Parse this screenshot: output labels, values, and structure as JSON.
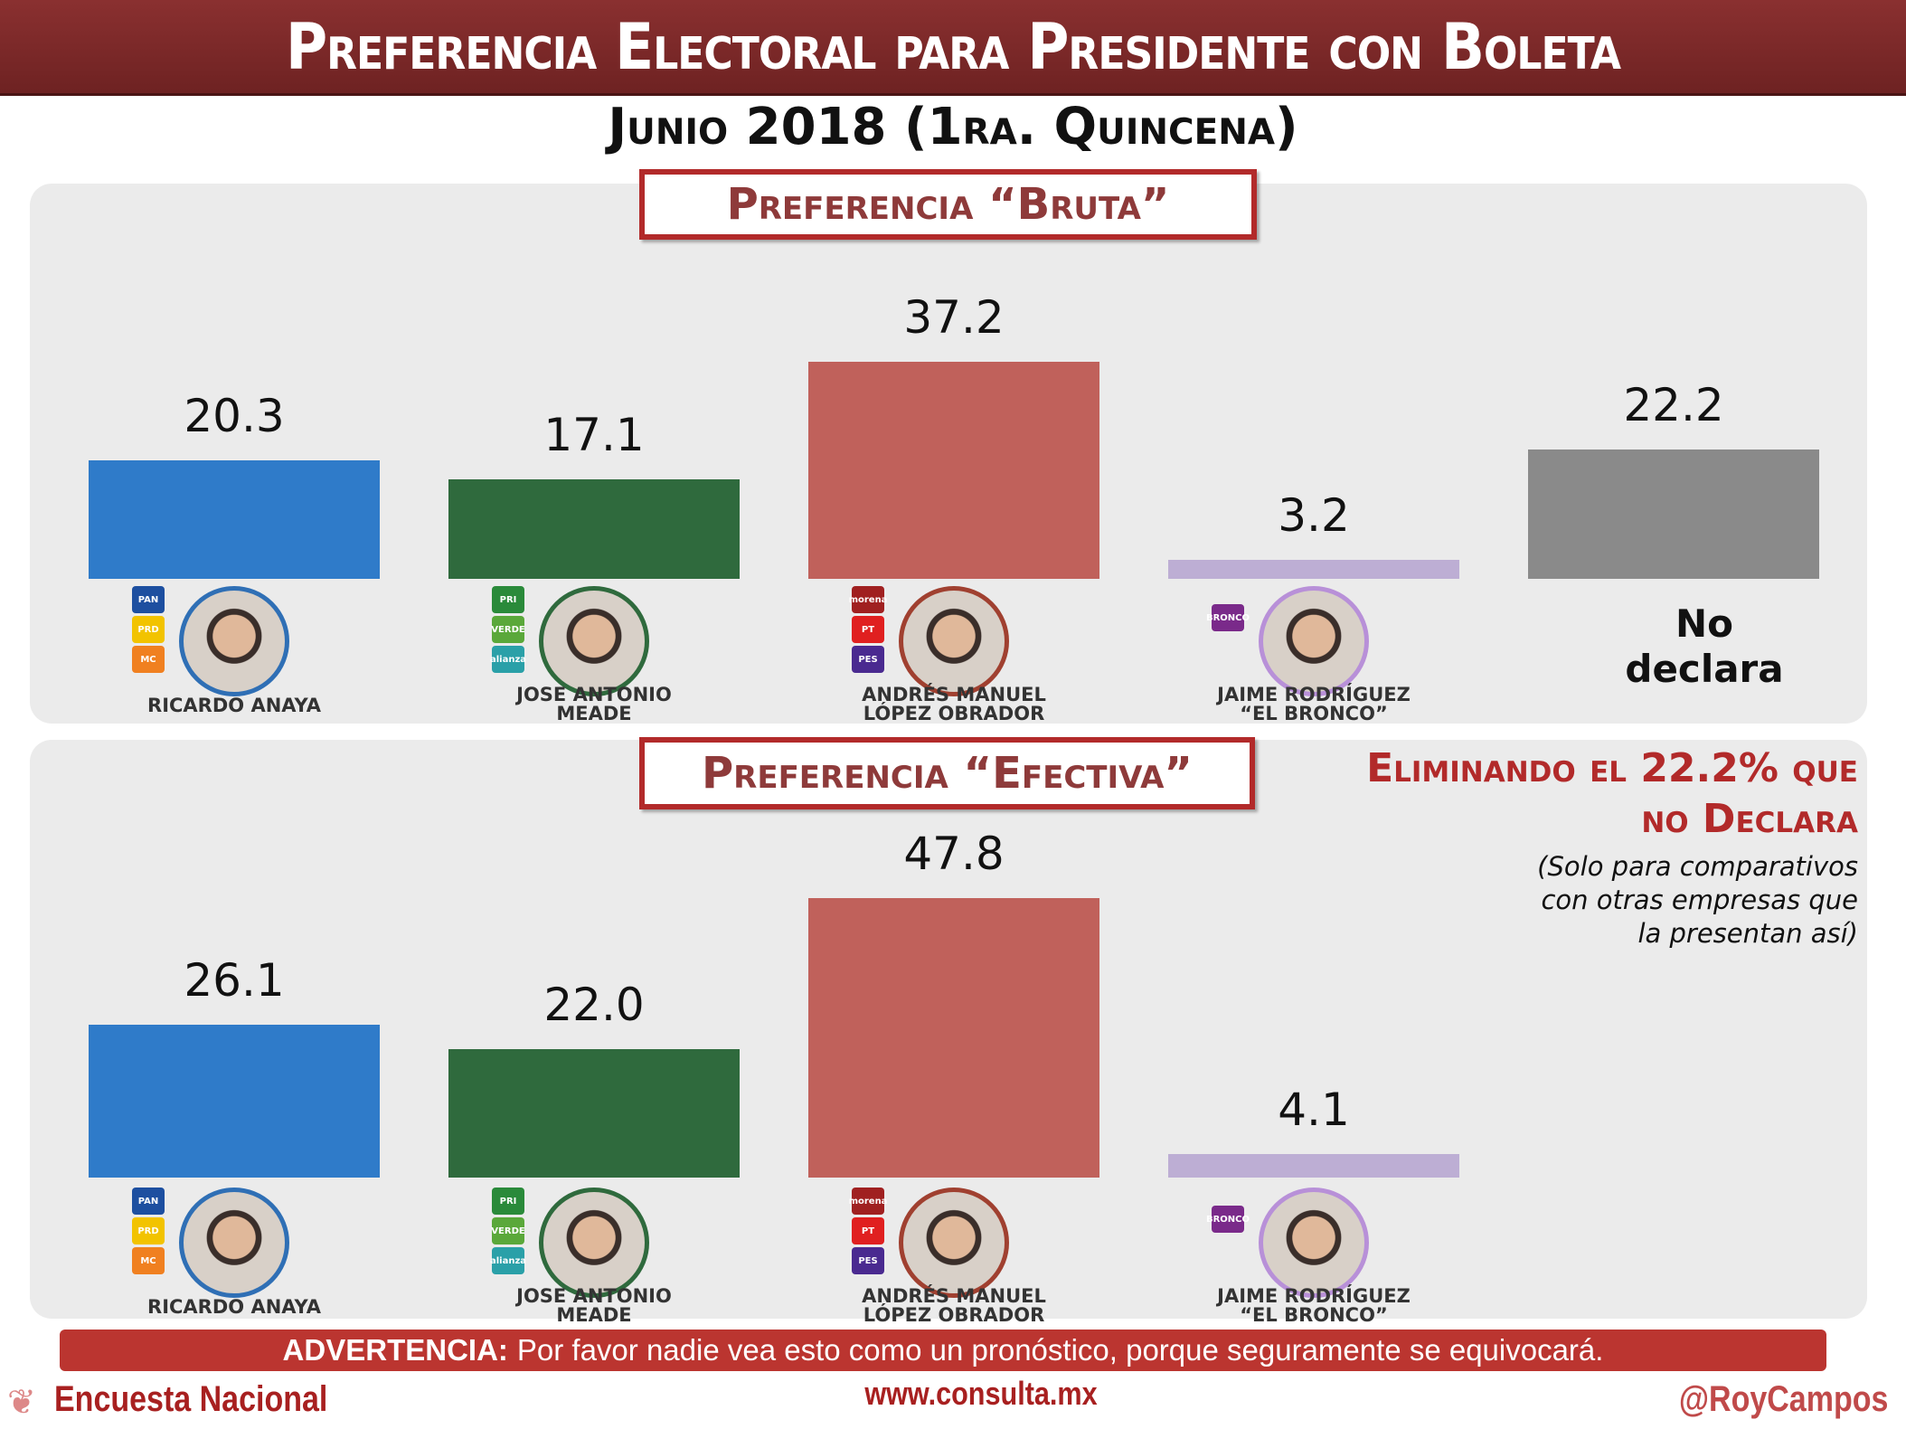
{
  "title": "Preferencia Electoral para Presidente con Boleta",
  "subtitle": "Junio 2018 (1ra. Quincena)",
  "colors": {
    "title_bar": "#7a2828",
    "accent": "#b22a2a",
    "panel": "#ebebeb"
  },
  "chart_data": [
    {
      "type": "bar",
      "title": "Preferencia “Bruta”",
      "categories": [
        "Ricardo Anaya",
        "Jose Antonio Meade",
        "Andrés Manuel López Obrador",
        "Jaime Rodríguez “El Bronco”",
        "No declara"
      ],
      "values": [
        20.3,
        17.1,
        37.2,
        3.2,
        22.2
      ],
      "colors": [
        "#2f7bc9",
        "#2f6a3d",
        "#c0615b",
        "#bdaed4",
        "#8a8a8a"
      ],
      "grid": false
    },
    {
      "type": "bar",
      "title": "Preferencia “Efectiva”",
      "categories": [
        "Ricardo Anaya",
        "Jose Antonio Meade",
        "Andrés Manuel López Obrador",
        "Jaime Rodríguez “El Bronco”"
      ],
      "values": [
        26.1,
        22.0,
        47.8,
        4.1
      ],
      "colors": [
        "#2f7bc9",
        "#2f6a3d",
        "#c0615b",
        "#bdaed4"
      ],
      "grid": false
    }
  ],
  "candidates": [
    {
      "name_lines": [
        "RICARDO ANAYA"
      ],
      "ring": "#2f6fb5",
      "parties": [
        {
          "label": "PAN",
          "color": "#1d4fa0"
        },
        {
          "label": "PRD",
          "color": "#f2c300"
        },
        {
          "label": "MC",
          "color": "#f08020"
        }
      ]
    },
    {
      "name_lines": [
        "JOSE ANTONIO",
        "MEADE"
      ],
      "ring": "#2f6a3d",
      "parties": [
        {
          "label": "PRI",
          "color": "#2a8a3a"
        },
        {
          "label": "VERDE",
          "color": "#5aa83a"
        },
        {
          "label": "alianza",
          "color": "#2aa0a8"
        }
      ]
    },
    {
      "name_lines": [
        "ANDRÉS MANUEL",
        "LÓPEZ OBRADOR"
      ],
      "ring": "#a04030",
      "parties": [
        {
          "label": "morena",
          "color": "#a02020"
        },
        {
          "label": "PT",
          "color": "#e02020"
        },
        {
          "label": "PES",
          "color": "#4a2a90"
        }
      ]
    },
    {
      "name_lines": [
        "JAIME RODRÍGUEZ",
        "“EL BRONCO”"
      ],
      "ring": "#b890d8",
      "parties": [
        {
          "label": "BRONCO",
          "color": "#7a2a8a"
        }
      ]
    }
  ],
  "no_declara_lines": [
    "No",
    "declara"
  ],
  "note": {
    "headline_lines": [
      "Eliminando el 22.2% que",
      "no Declara"
    ],
    "sub_lines": [
      "(Solo para comparativos",
      "con otras empresas que",
      "la presentan así)"
    ]
  },
  "warning": {
    "bold": "ADVERTENCIA:",
    "text": "Por favor nadie vea esto como un pronóstico, porque seguramente se equivocará."
  },
  "footer": {
    "left": "Encuesta Nacional",
    "center": "www.consulta.mx",
    "right": "@RoyCampos"
  }
}
